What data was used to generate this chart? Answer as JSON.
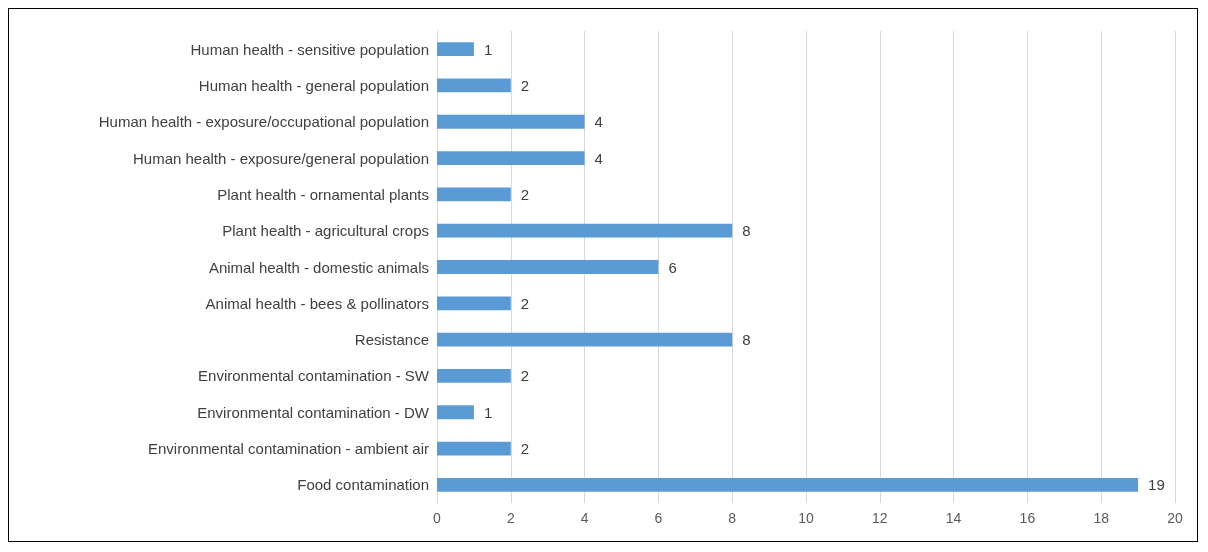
{
  "chart_data": {
    "type": "bar",
    "orientation": "horizontal",
    "categories": [
      "Human health - sensitive population",
      "Human health - general population",
      "Human health - exposure/occupational population",
      "Human health - exposure/general population",
      "Plant health - ornamental plants",
      "Plant health - agricultural crops",
      "Animal health - domestic animals",
      "Animal health - bees & pollinators",
      "Resistance",
      "Environmental contamination - SW",
      "Environmental contamination - DW",
      "Environmental contamination - ambient air",
      "Food contamination"
    ],
    "values": [
      1,
      2,
      4,
      4,
      2,
      8,
      6,
      2,
      8,
      2,
      1,
      2,
      19
    ],
    "color": "#5b9bd5",
    "xlim": [
      0,
      20
    ],
    "xticks": [
      0,
      2,
      4,
      6,
      8,
      10,
      12,
      14,
      16,
      18,
      20
    ],
    "grid": "x",
    "data_labels": true
  }
}
